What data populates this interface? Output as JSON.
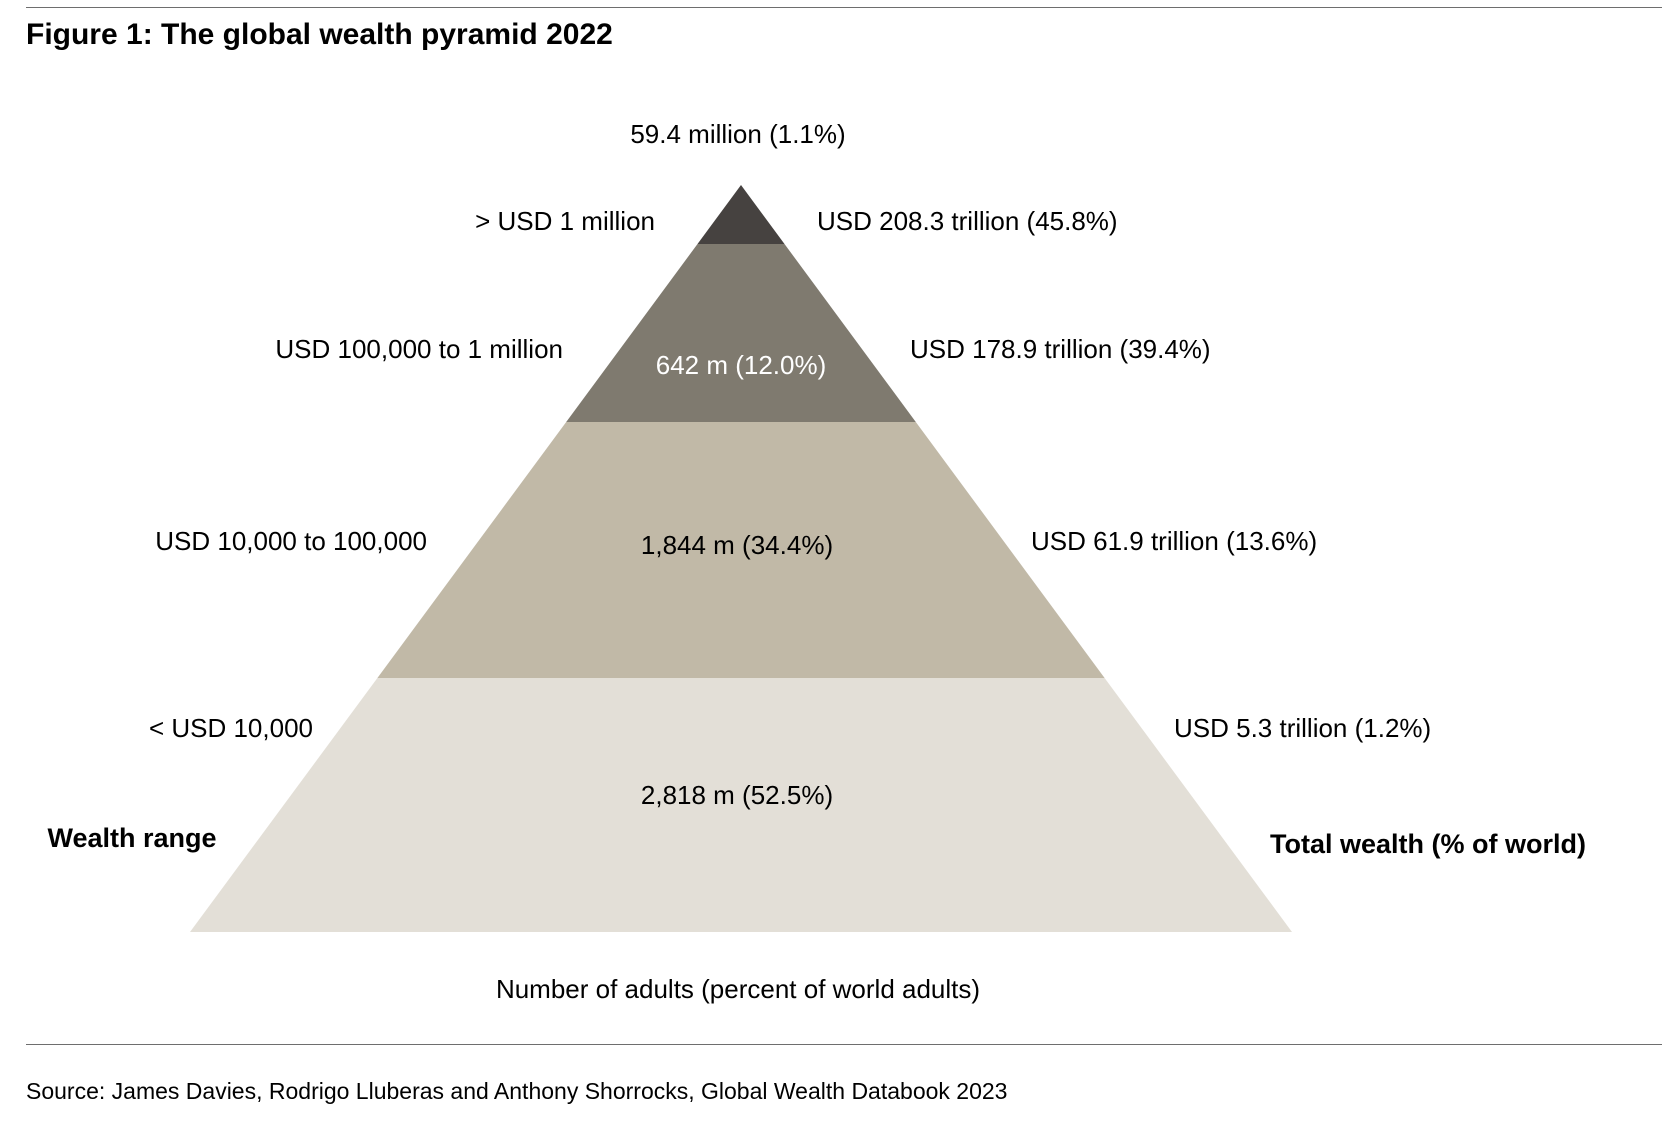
{
  "figure": {
    "title": "Figure 1: The global wealth pyramid 2022",
    "source": "Source: James Davies, Rodrigo Lluberas and Anthony Shorrocks, Global Wealth Databook 2023"
  },
  "chart_data": {
    "type": "pyramid",
    "title": "Figure 1: The global wealth pyramid 2022",
    "xlabel": "Number of adults (percent of world adults)",
    "left_axis_label": "Wealth range",
    "right_axis_label": "Total wealth (% of world)",
    "tiers": [
      {
        "wealth_range": ">  USD 1 million",
        "adults_label": "59.4 million (1.1%)",
        "adults_millions": 59.4,
        "adults_pct": 1.1,
        "wealth_label": "USD 208.3 trillion (45.8%)",
        "wealth_trillion_usd": 208.3,
        "wealth_pct": 45.8,
        "color": "#464240",
        "text_color": "#000000"
      },
      {
        "wealth_range": "USD 100,000  to 1 million",
        "adults_label": "642 m (12.0%)",
        "adults_millions": 642,
        "adults_pct": 12.0,
        "wealth_label": "USD 178.9 trillion (39.4%)",
        "wealth_trillion_usd": 178.9,
        "wealth_pct": 39.4,
        "color": "#7f7a6f",
        "text_color": "#ffffff"
      },
      {
        "wealth_range": "USD 10,000  to 100,000",
        "adults_label": "1,844 m (34.4%)",
        "adults_millions": 1844,
        "adults_pct": 34.4,
        "wealth_label": "USD 61.9 trillion (13.6%)",
        "wealth_trillion_usd": 61.9,
        "wealth_pct": 13.6,
        "color": "#c1b9a7",
        "text_color": "#000000"
      },
      {
        "wealth_range": "< USD 10,000",
        "adults_label": "2,818 m (52.5%)",
        "adults_millions": 2818,
        "adults_pct": 52.5,
        "wealth_label": "USD 5.3 trillion (1.2%)",
        "wealth_trillion_usd": 5.3,
        "wealth_pct": 1.2,
        "color": "#e3dfd7",
        "text_color": "#000000"
      }
    ]
  }
}
